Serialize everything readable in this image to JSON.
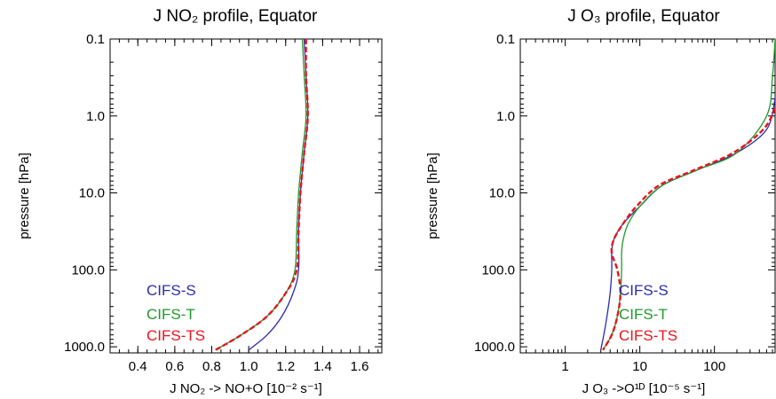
{
  "chart_data": [
    {
      "type": "line",
      "title": "J NO₂ profile, Equator",
      "xlabel": "J NO₂ -> NO+O [10⁻² s⁻¹]",
      "ylabel": "pressure [hPa]",
      "xscale": "linear",
      "yscale": "log",
      "yreversed": true,
      "xlim": [
        0.25,
        1.72
      ],
      "ylim": [
        1200,
        0.1
      ],
      "xticks": [
        0.4,
        0.6,
        0.8,
        1.0,
        1.2,
        1.4,
        1.6
      ],
      "xticklabels": [
        "0.4",
        "0.6",
        "0.8",
        "1.0",
        "1.2",
        "1.4",
        "1.6"
      ],
      "yticks": [
        0.1,
        1,
        10,
        100,
        1000
      ],
      "yticklabels": [
        "0.1",
        "1.0",
        "10.0",
        "100.0",
        "1000.0"
      ],
      "legend": "bottom-left",
      "series": [
        {
          "name": "CIFS-S",
          "color": "#2b2bb0",
          "dash": "solid",
          "points": [
            [
              1.3,
              0.1
            ],
            [
              1.31,
              0.3
            ],
            [
              1.32,
              1
            ],
            [
              1.3,
              3
            ],
            [
              1.28,
              10
            ],
            [
              1.27,
              30
            ],
            [
              1.27,
              100
            ],
            [
              1.24,
              200
            ],
            [
              1.18,
              400
            ],
            [
              1.1,
              700
            ],
            [
              1.0,
              1100
            ]
          ]
        },
        {
          "name": "CIFS-T",
          "color": "#1f9a2a",
          "dash": "solid",
          "points": [
            [
              1.29,
              0.1
            ],
            [
              1.3,
              0.3
            ],
            [
              1.31,
              1
            ],
            [
              1.29,
              3
            ],
            [
              1.27,
              10
            ],
            [
              1.26,
              30
            ],
            [
              1.25,
              100
            ],
            [
              1.2,
              200
            ],
            [
              1.1,
              400
            ],
            [
              0.96,
              700
            ],
            [
              0.82,
              1100
            ]
          ]
        },
        {
          "name": "CIFS-TS",
          "color": "#e8141c",
          "dash": "dashed",
          "points": [
            [
              1.31,
              0.1
            ],
            [
              1.31,
              0.3
            ],
            [
              1.32,
              1
            ],
            [
              1.3,
              3
            ],
            [
              1.28,
              10
            ],
            [
              1.27,
              30
            ],
            [
              1.26,
              100
            ],
            [
              1.2,
              200
            ],
            [
              1.1,
              400
            ],
            [
              0.96,
              700
            ],
            [
              0.82,
              1100
            ]
          ]
        }
      ]
    },
    {
      "type": "line",
      "title": "J O₃ profile, Equator",
      "xlabel": "J O₃ ->O¹ᴰ [10⁻⁵ s⁻¹]",
      "ylabel": "pressure [hPa]",
      "xscale": "log",
      "yscale": "log",
      "yreversed": true,
      "xlim": [
        0.25,
        650
      ],
      "ylim": [
        1200,
        0.1
      ],
      "xticks": [
        1,
        10,
        100
      ],
      "xticklabels": [
        "1",
        "10",
        "100"
      ],
      "yticks": [
        0.1,
        1,
        10,
        100,
        1000
      ],
      "yticklabels": [
        "0.1",
        "1.0",
        "10.0",
        "100.0",
        "1000.0"
      ],
      "legend": "bottom-center",
      "series": [
        {
          "name": "CIFS-S",
          "color": "#2b2bb0",
          "dash": "solid",
          "points": [
            [
              650,
              0.6
            ],
            [
              500,
              1.5
            ],
            [
              200,
              3
            ],
            [
              60,
              5
            ],
            [
              20,
              8
            ],
            [
              10,
              15
            ],
            [
              6,
              25
            ],
            [
              4.5,
              40
            ],
            [
              4.2,
              60
            ],
            [
              4.2,
              100
            ],
            [
              4.0,
              200
            ],
            [
              3.5,
              500
            ],
            [
              3.0,
              1100
            ]
          ]
        },
        {
          "name": "CIFS-T",
          "color": "#1f9a2a",
          "dash": "solid",
          "points": [
            [
              650,
              0.1
            ],
            [
              600,
              0.3
            ],
            [
              500,
              1
            ],
            [
              200,
              3
            ],
            [
              60,
              5
            ],
            [
              20,
              8
            ],
            [
              10,
              15
            ],
            [
              7,
              25
            ],
            [
              6,
              40
            ],
            [
              5.7,
              60
            ],
            [
              5.7,
              100
            ],
            [
              5.5,
              200
            ],
            [
              5.0,
              400
            ],
            [
              4.2,
              700
            ],
            [
              3.2,
              1100
            ]
          ]
        },
        {
          "name": "CIFS-TS",
          "color": "#e8141c",
          "dash": "dashed",
          "points": [
            [
              650,
              0.8
            ],
            [
              450,
              1.5
            ],
            [
              180,
              3
            ],
            [
              55,
              5
            ],
            [
              18,
              8
            ],
            [
              9,
              15
            ],
            [
              6,
              25
            ],
            [
              4.5,
              40
            ],
            [
              4.2,
              60
            ],
            [
              5.0,
              100
            ],
            [
              5.5,
              200
            ],
            [
              5.0,
              400
            ],
            [
              4.2,
              700
            ],
            [
              3.2,
              1100
            ]
          ]
        }
      ]
    }
  ]
}
